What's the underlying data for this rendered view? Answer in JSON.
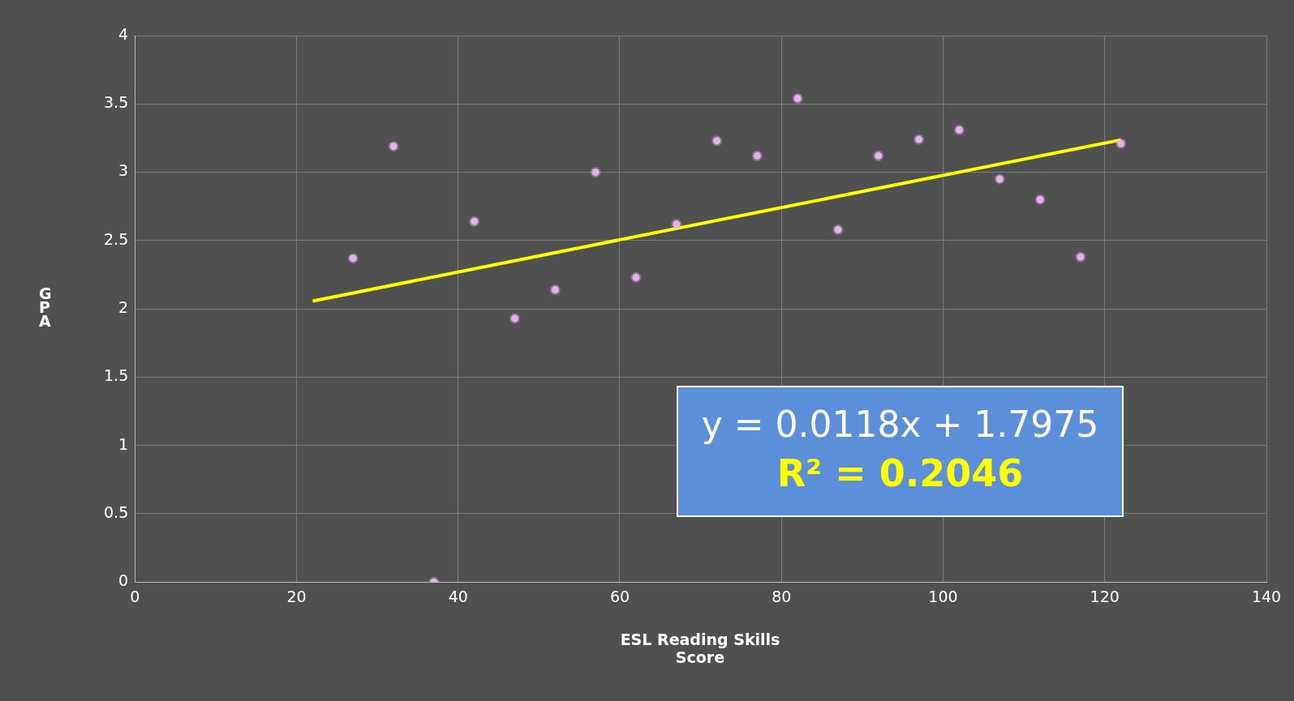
{
  "chart_data": {
    "type": "scatter",
    "xlabel": "ESL Reading Skills Score",
    "ylabel": "GPA",
    "xlim": [
      0,
      140
    ],
    "xticks": [
      0,
      20,
      40,
      60,
      80,
      100,
      120,
      140
    ],
    "ylim": [
      0,
      4
    ],
    "yticks": [
      0,
      0.5,
      1,
      1.5,
      2,
      2.5,
      3,
      3.5,
      4
    ],
    "grid": true,
    "legend": false,
    "marker": "circle",
    "series": [
      {
        "color": "#e8b0f0",
        "x": [
          27,
          32,
          37,
          42,
          47,
          52,
          57,
          62,
          67,
          72,
          77,
          82,
          87,
          92,
          97,
          102,
          107,
          112,
          117,
          122
        ],
        "values": [
          2.37,
          3.19,
          0,
          2.64,
          1.93,
          2.14,
          3.0,
          2.23,
          2.62,
          3.23,
          3.12,
          3.54,
          2.58,
          3.12,
          3.24,
          3.31,
          2.95,
          2.8,
          2.38,
          3.21
        ]
      },
      {
        "type": "line",
        "color": "#ffff00",
        "marker": "none",
        "x": [
          22,
          122
        ],
        "values": [
          2.057,
          3.237
        ]
      }
    ],
    "annotations": [
      "y = 0.0118x + 1.7975",
      "R² = 0.2046"
    ]
  }
}
